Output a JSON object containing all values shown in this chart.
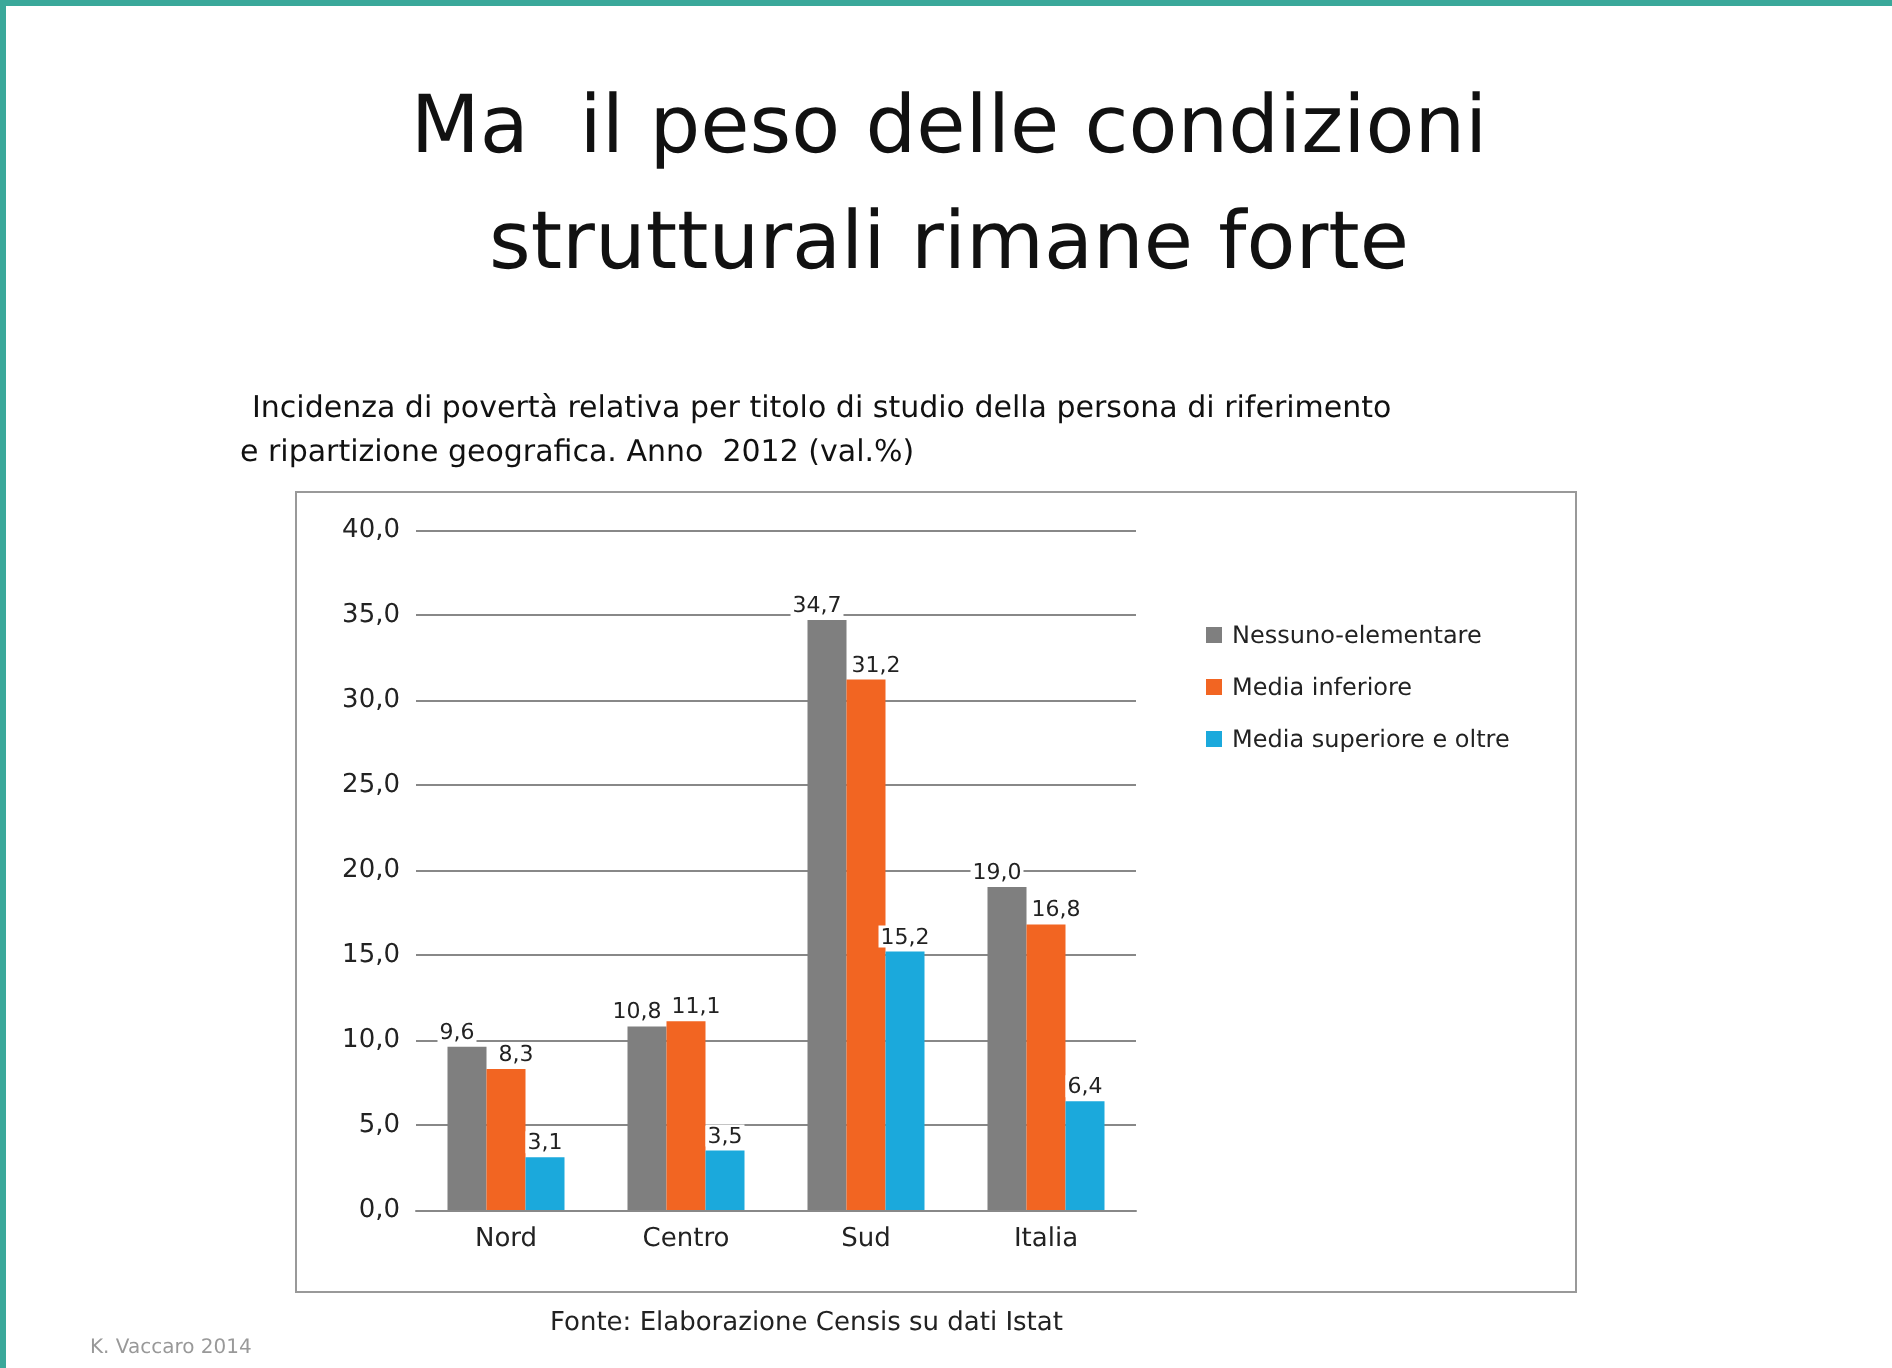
{
  "chart_data": {
    "type": "bar",
    "title": "Ma  il peso delle condizioni\nstrutturali rimane forte",
    "subtitle": "Incidenza di povertà relativa per titolo di studio della persona di riferimento\ne ripartizione geografica. Anno  2012 (val.%)",
    "categories": [
      "Nord",
      "Centro",
      "Sud",
      "Italia"
    ],
    "series": [
      {
        "name": "Nessuno-elementare",
        "color": "#7f7f7f",
        "values": [
          9.6,
          10.8,
          34.7,
          19.0
        ],
        "value_labels": [
          "9,6",
          "10,8",
          "34,7",
          "19,0"
        ]
      },
      {
        "name": "Media inferiore",
        "color": "#f26522",
        "values": [
          8.3,
          11.1,
          31.2,
          16.8
        ],
        "value_labels": [
          "8,3",
          "11,1",
          "31,2",
          "16,8"
        ]
      },
      {
        "name": "Media superiore e oltre",
        "color": "#1ba9dc",
        "values": [
          3.1,
          3.5,
          15.2,
          6.4
        ],
        "value_labels": [
          "3,1",
          "3,5",
          "15,2",
          "6,4"
        ]
      }
    ],
    "ylim": [
      0,
      40
    ],
    "yticks": [
      {
        "value": 0,
        "label": "0,0"
      },
      {
        "value": 5,
        "label": "5,0"
      },
      {
        "value": 10,
        "label": "10,0"
      },
      {
        "value": 15,
        "label": "15,0"
      },
      {
        "value": 20,
        "label": "20,0"
      },
      {
        "value": 25,
        "label": "25,0"
      },
      {
        "value": 30,
        "label": "30,0"
      },
      {
        "value": 35,
        "label": "35,0"
      },
      {
        "value": 40,
        "label": "40,0"
      }
    ],
    "grid": "y",
    "legend": "right",
    "annotations": [
      "Fonte: Elaborazione Censis su dati Istat",
      "K. Vaccaro 2014"
    ]
  }
}
